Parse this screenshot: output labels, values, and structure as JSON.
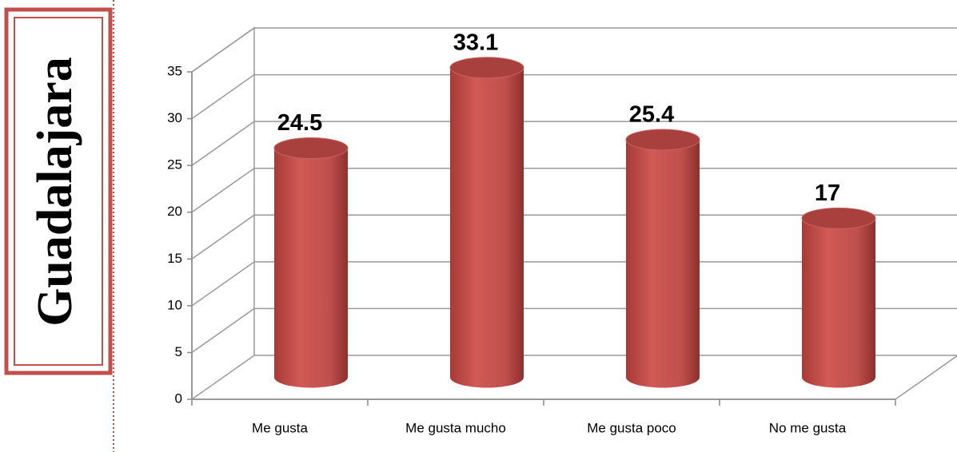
{
  "chart_data": {
    "type": "bar",
    "title": "Guadalajara",
    "categories": [
      "Me gusta",
      "Me gusta mucho",
      "Me gusta poco",
      "No me gusta"
    ],
    "values": [
      24.5,
      33.1,
      25.4,
      17
    ],
    "color": "#c0504d",
    "ylim": [
      0,
      35
    ],
    "yticks": [
      0,
      5,
      10,
      15,
      20,
      25,
      30,
      35
    ],
    "grid": true
  }
}
